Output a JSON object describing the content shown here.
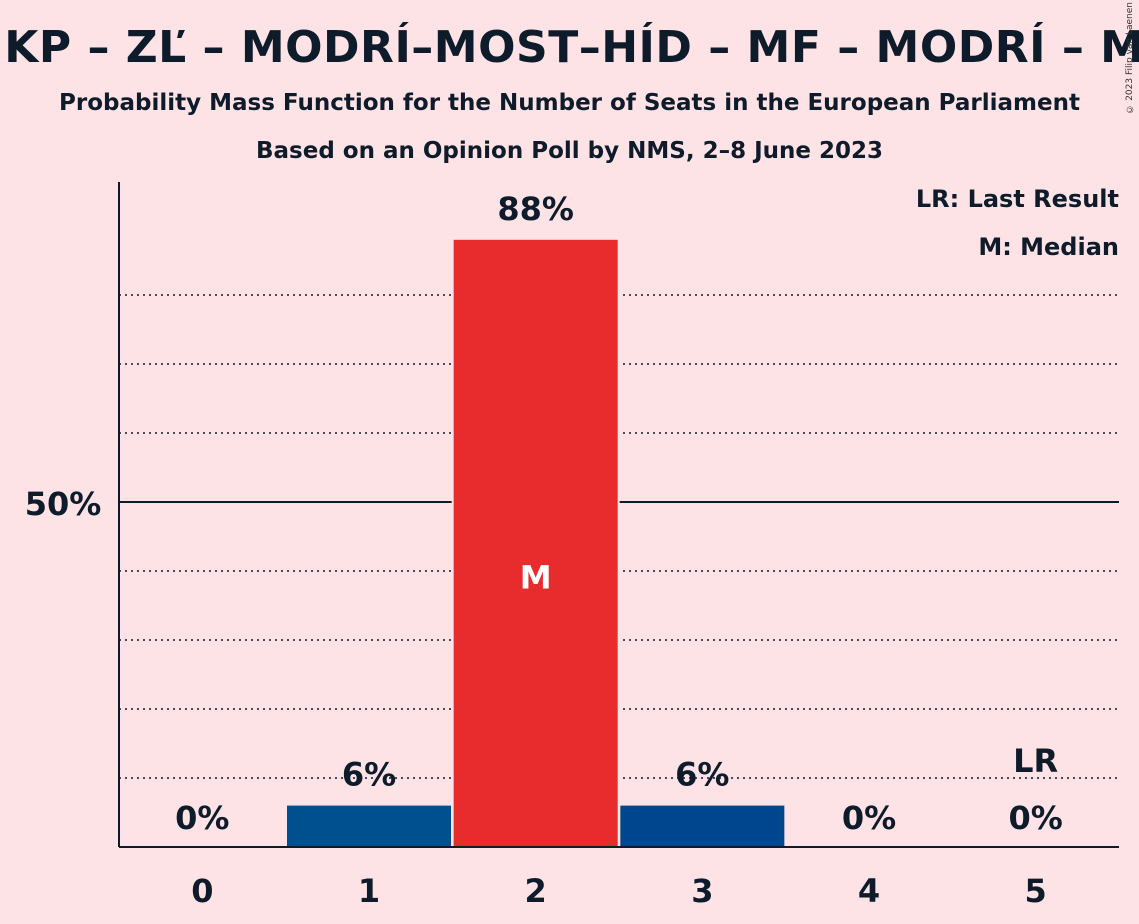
{
  "title": "MKP – ZĽ – MODRÍ–MOST–HÍD – MF – MODRÍ – MOST",
  "subtitle": "Probability Mass Function for the Number of Seats in the European Parliament",
  "subtitle2": "Based on an Opinion Poll by NMS, 2–8 June 2023",
  "copyright": "© 2023 Filip van Laenen",
  "legend": {
    "last_result": "LR: Last Result",
    "median": "M: Median"
  },
  "chart_data": {
    "type": "bar",
    "categories": [
      "0",
      "1",
      "2",
      "3",
      "4",
      "5"
    ],
    "values": [
      0,
      6,
      88,
      6,
      0,
      0
    ],
    "value_labels": [
      "0%",
      "6%",
      "88%",
      "6%",
      "0%",
      "0%"
    ],
    "bar_colors": [
      "#1a4f86",
      "#00508f",
      "#e82c2e",
      "#00468f",
      "#1a4f86",
      "#1a4f86"
    ],
    "y_tick_label": "50%",
    "y_tick_value": 50,
    "ylim": [
      0,
      96
    ],
    "gridlines": [
      10,
      20,
      30,
      40,
      60,
      70,
      80
    ],
    "median_index": 2,
    "median_marker": "M",
    "last_result_index": 5,
    "last_result_marker": "LR"
  }
}
